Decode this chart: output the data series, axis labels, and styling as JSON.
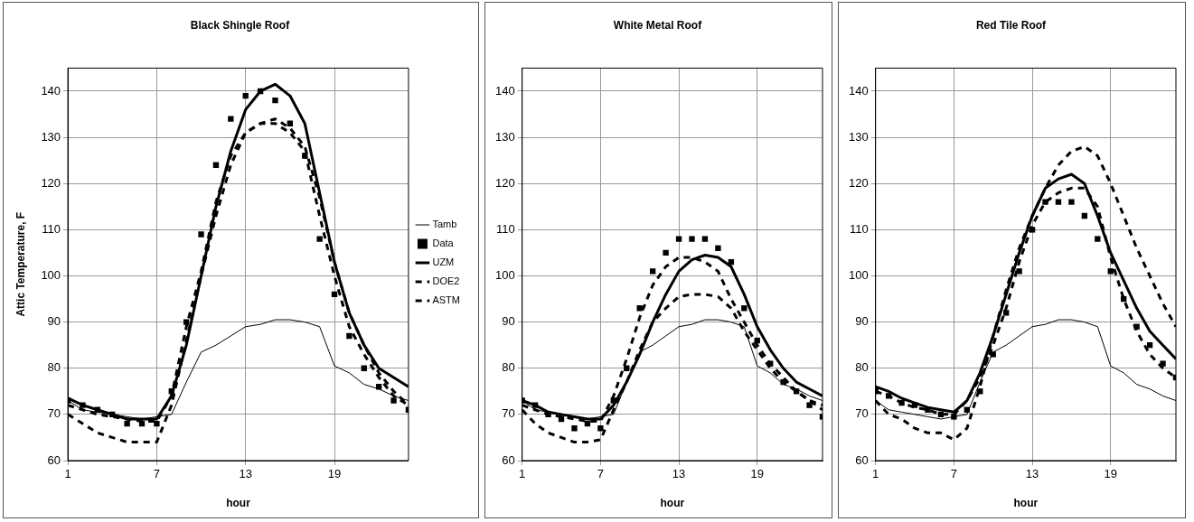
{
  "chart_data": [
    {
      "type": "line",
      "title": "Black Shingle Roof",
      "xlabel": "hour",
      "ylabel": "Attic Temperature, F",
      "x": [
        1,
        2,
        3,
        4,
        5,
        6,
        7,
        8,
        9,
        10,
        11,
        12,
        13,
        14,
        15,
        16,
        17,
        18,
        19,
        20,
        21,
        22,
        23,
        24
      ],
      "xlim": [
        1,
        24
      ],
      "xticks": [
        1,
        7,
        13,
        19
      ],
      "ylim": [
        60,
        145
      ],
      "yticks": [
        60,
        70,
        80,
        90,
        100,
        110,
        120,
        130,
        140
      ],
      "grid": true,
      "legend": "right",
      "series": [
        {
          "name": "Tamb",
          "type": "line",
          "color": "#000000",
          "marker": "none",
          "line_style": "solid",
          "values": [
            73,
            71,
            70.5,
            70,
            69.5,
            69,
            69.5,
            70,
            77,
            83.5,
            85,
            87,
            89,
            89.5,
            90.5,
            90.5,
            90,
            89,
            80.5,
            79,
            76.5,
            75.5,
            74,
            73
          ]
        },
        {
          "name": "Data",
          "type": "scatter",
          "color": "#000000",
          "marker": "square",
          "values": [
            73,
            72,
            71,
            70,
            68,
            68,
            68,
            75,
            90,
            109,
            124,
            134,
            139,
            140,
            138,
            133,
            126,
            108,
            96,
            87,
            80,
            76,
            73,
            71
          ]
        },
        {
          "name": "UZM",
          "type": "line",
          "color": "#000000",
          "marker": "none",
          "line_style": "solid",
          "values": [
            73.5,
            72,
            71,
            70,
            69,
            69,
            69,
            74,
            85,
            100,
            115,
            127,
            136,
            140,
            141.5,
            139,
            133,
            118,
            103,
            92,
            85,
            80,
            78,
            76
          ]
        },
        {
          "name": "DOE2",
          "type": "line",
          "color": "#000000",
          "marker": "none",
          "line_style": "dashed",
          "values": [
            70,
            68,
            66,
            65,
            64,
            64,
            64,
            72,
            86,
            100,
            113,
            124,
            131,
            133,
            134,
            132,
            128,
            117,
            103,
            92,
            85,
            79,
            75,
            72
          ]
        },
        {
          "name": "ASTM",
          "type": "line",
          "color": "#000000",
          "marker": "none",
          "line_style": "dashed",
          "values": [
            72,
            71,
            70,
            69.5,
            69,
            68.5,
            68.5,
            74,
            89,
            101,
            116,
            126,
            131,
            133,
            133,
            131,
            127,
            113,
            100,
            89,
            83,
            78,
            74,
            72
          ]
        }
      ]
    },
    {
      "type": "line",
      "title": "White Metal Roof",
      "xlabel": "hour",
      "x": [
        1,
        2,
        3,
        4,
        5,
        6,
        7,
        8,
        9,
        10,
        11,
        12,
        13,
        14,
        15,
        16,
        17,
        18,
        19,
        20,
        21,
        22,
        23,
        24
      ],
      "xlim": [
        1,
        24
      ],
      "xticks": [
        1,
        7,
        13,
        19
      ],
      "ylim": [
        60,
        145
      ],
      "yticks": [
        60,
        70,
        80,
        90,
        100,
        110,
        120,
        130,
        140
      ],
      "grid": true,
      "series": [
        {
          "type": "line",
          "color": "#000000",
          "marker": "none",
          "line_style": "solid",
          "values": [
            73,
            71,
            70.5,
            70,
            69.5,
            69,
            69.5,
            70,
            77,
            83.5,
            85,
            87,
            89,
            89.5,
            90.5,
            90.5,
            90,
            89,
            80.5,
            79,
            76.5,
            75.5,
            74,
            73
          ]
        },
        {
          "type": "scatter",
          "color": "#000000",
          "marker": "square",
          "values": [
            73,
            72,
            70,
            69,
            67,
            68,
            67,
            73,
            80,
            93,
            101,
            105,
            108,
            108,
            108,
            106,
            103,
            93,
            86,
            81,
            77,
            75,
            72,
            69.5
          ]
        },
        {
          "type": "line",
          "color": "#000000",
          "marker": "none",
          "line_style": "solid",
          "values": [
            73,
            72,
            70.5,
            70,
            69.5,
            69,
            69,
            72,
            77,
            83,
            90,
            96,
            101,
            103.5,
            104.5,
            104,
            102,
            96,
            89,
            84,
            80,
            77,
            75.5,
            74
          ]
        },
        {
          "type": "line",
          "color": "#000000",
          "marker": "none",
          "line_style": "dashed",
          "values": [
            71,
            68,
            66,
            65,
            64,
            64,
            64.5,
            71,
            77,
            84,
            90,
            93,
            95.5,
            96,
            96,
            95.5,
            93,
            88,
            84,
            80,
            77,
            75,
            73,
            72
          ]
        },
        {
          "type": "line",
          "color": "#000000",
          "marker": "none",
          "line_style": "dashed",
          "values": [
            72,
            71,
            70,
            69.5,
            69,
            68.5,
            68.5,
            74,
            82,
            91,
            98,
            102,
            104,
            104,
            103,
            101,
            95,
            90,
            85,
            81,
            78,
            75,
            73,
            71
          ]
        }
      ]
    },
    {
      "type": "line",
      "title": "Red Tile Roof",
      "xlabel": "hour",
      "x": [
        1,
        2,
        3,
        4,
        5,
        6,
        7,
        8,
        9,
        10,
        11,
        12,
        13,
        14,
        15,
        16,
        17,
        18,
        19,
        20,
        21,
        22,
        23,
        24
      ],
      "xlim": [
        1,
        24
      ],
      "xticks": [
        1,
        7,
        13,
        19
      ],
      "ylim": [
        60,
        145
      ],
      "yticks": [
        60,
        70,
        80,
        90,
        100,
        110,
        120,
        130,
        140
      ],
      "grid": true,
      "series": [
        {
          "type": "line",
          "color": "#000000",
          "marker": "none",
          "line_style": "solid",
          "values": [
            73,
            71,
            70.5,
            70,
            69.5,
            69,
            69.5,
            70,
            77,
            83.5,
            85,
            87,
            89,
            89.5,
            90.5,
            90.5,
            90,
            89,
            80.5,
            79,
            76.5,
            75.5,
            74,
            73
          ]
        },
        {
          "type": "scatter",
          "color": "#000000",
          "marker": "square",
          "values": [
            75,
            74,
            72.5,
            72,
            71,
            70,
            69.5,
            71,
            75,
            83,
            92,
            101,
            110,
            116,
            116,
            116,
            113,
            108,
            101,
            95,
            89,
            85,
            81,
            78
          ]
        },
        {
          "type": "line",
          "color": "#000000",
          "marker": "none",
          "line_style": "solid",
          "values": [
            76,
            75,
            73.5,
            72.5,
            71.5,
            71,
            70.5,
            73,
            79,
            87,
            96,
            105,
            113,
            119,
            121,
            122,
            120,
            113,
            105,
            99,
            93,
            88,
            85,
            82
          ]
        },
        {
          "type": "line",
          "color": "#000000",
          "marker": "none",
          "line_style": "dashed",
          "values": [
            73,
            70,
            69,
            67,
            66,
            66,
            64.5,
            67,
            76,
            87,
            97,
            106,
            113,
            119,
            124,
            127,
            128,
            126,
            120,
            113,
            106,
            100,
            94,
            89
          ]
        },
        {
          "type": "line",
          "color": "#000000",
          "marker": "none",
          "line_style": "dashed",
          "values": [
            75,
            74,
            72.5,
            71.5,
            71,
            70,
            70,
            73,
            78,
            85,
            93,
            103,
            111,
            116,
            118,
            119,
            119,
            115,
            104,
            95,
            88,
            83,
            80,
            78
          ]
        }
      ]
    }
  ]
}
